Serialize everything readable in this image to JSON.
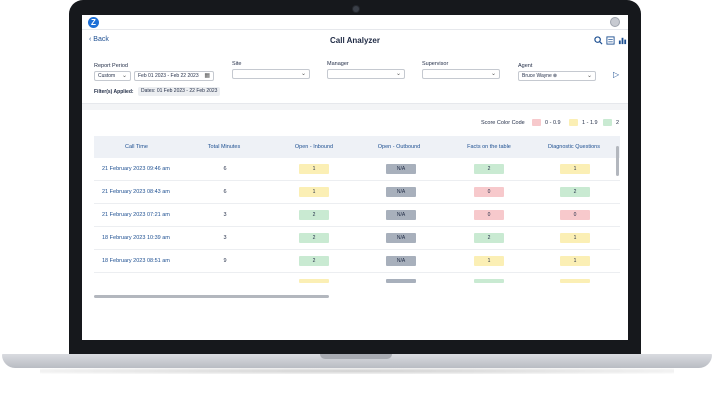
{
  "header": {
    "back_label": "Back",
    "title": "Call Analyzer"
  },
  "icons": {
    "logo": "Z",
    "search": "search-icon",
    "report": "report-icon",
    "chart": "bar-chart-icon",
    "send": "send-icon"
  },
  "filters": {
    "report_period_label": "Report Period",
    "report_period_value": "Custom",
    "date_range": "Feb 01 2023 - Feb 22 2023",
    "site_label": "Site",
    "site_value": "",
    "manager_label": "Manager",
    "manager_value": "",
    "supervisor_label": "Supervisor",
    "supervisor_value": "",
    "agent_label": "Agent",
    "agent_value": "Bruce Wayne",
    "applied_label": "Filter(s) Applied:",
    "applied_chip": "Dates: 01 Feb 2023 - 22 Feb 2023"
  },
  "legend": {
    "label": "Score Color Code",
    "items": [
      {
        "text": "0 - 0.9",
        "color": "#f7c9cc"
      },
      {
        "text": "1 - 1.9",
        "color": "#fbefb5"
      },
      {
        "text": "2",
        "color": "#c9ead2"
      }
    ]
  },
  "table": {
    "columns": [
      "Call Time",
      "Total Minutes",
      "Open - Inbound",
      "Open - Outbound",
      "Facts on the table",
      "Diagnostic Questions"
    ],
    "rows": [
      {
        "date": "21 February 2023   09:46 am",
        "minutes": "6",
        "inbound": "1",
        "outbound": "N/A",
        "facts": "2",
        "diagnostic": "1"
      },
      {
        "date": "21 February 2023   08:43 am",
        "minutes": "6",
        "inbound": "1",
        "outbound": "N/A",
        "facts": "0",
        "diagnostic": "2"
      },
      {
        "date": "21 February 2023   07:21 am",
        "minutes": "3",
        "inbound": "2",
        "outbound": "N/A",
        "facts": "0",
        "diagnostic": "0"
      },
      {
        "date": "18 February 2023   10:39 am",
        "minutes": "3",
        "inbound": "2",
        "outbound": "N/A",
        "facts": "2",
        "diagnostic": "1"
      },
      {
        "date": "18 February 2023   08:51 am",
        "minutes": "9",
        "inbound": "2",
        "outbound": "N/A",
        "facts": "1",
        "diagnostic": "1"
      }
    ]
  }
}
